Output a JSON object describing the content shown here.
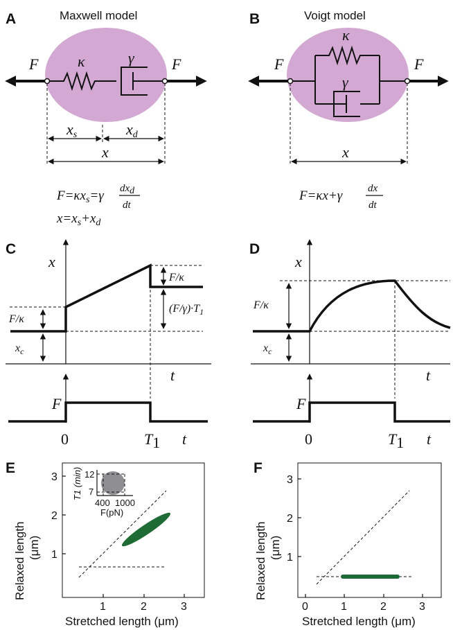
{
  "panels": {
    "A": {
      "letter": "A",
      "title": "Maxwell model",
      "force_left": "F",
      "force_right": "F",
      "spring_symbol": "κ",
      "dashpot_symbol": "γ",
      "dim_xs": "x",
      "dim_xs_sub": "s",
      "dim_xd": "x",
      "dim_xd_sub": "d",
      "dim_x": "x",
      "eq1_lhs": "F=κx",
      "eq1_lhs_sub": "s",
      "eq1_mid": "=γ",
      "eq1_num": "dx",
      "eq1_num_sub": "d",
      "eq1_den": "dt",
      "eq2_a": "x=x",
      "eq2_a_sub": "s",
      "eq2_b": "+x",
      "eq2_b_sub": "d"
    },
    "B": {
      "letter": "B",
      "title": "Voigt model",
      "force_left": "F",
      "force_right": "F",
      "spring_symbol": "κ",
      "dashpot_symbol": "γ",
      "dim_x": "x",
      "eq_lhs": "F=κx+γ",
      "eq_num": "dx",
      "eq_den": "dt"
    },
    "C": {
      "letter": "C",
      "y_symbol": "x",
      "t_symbol": "t",
      "t_symbol_lower": "t",
      "label_F_over_kappa_left": "F/κ",
      "label_F_over_kappa_right": "F/κ",
      "label_xc": "x",
      "label_xc_sub": "c",
      "label_creep": "(F/γ)·T",
      "label_creep_sub": "1",
      "force_symbol": "F",
      "tick_zero": "0",
      "tick_T": "T",
      "tick_T_sub": "1"
    },
    "D": {
      "letter": "D",
      "y_symbol": "x",
      "t_symbol": "t",
      "t_symbol_lower": "t",
      "label_F_over_kappa": "F/κ",
      "label_xc": "x",
      "label_xc_sub": "c",
      "force_symbol": "F",
      "tick_zero": "0",
      "tick_T": "T",
      "tick_T_sub": "1"
    },
    "E": {
      "letter": "E",
      "xlabel": "Stretched length (μm)",
      "ylabel_line1": "Relaxed length",
      "ylabel_line2": "(μm)",
      "x_ticks": [
        "1",
        "2",
        "3"
      ],
      "y_ticks": [
        "1",
        "2",
        "3"
      ],
      "inset": {
        "ylabel": "T1 (min)",
        "xlabel": "F(pN)",
        "y_ticks": [
          "12",
          "7"
        ],
        "x_ticks": [
          "400",
          "1000"
        ],
        "blob_color": "#8f8f93"
      },
      "ellipse_color": "#1f6b35"
    },
    "F": {
      "letter": "F",
      "xlabel": "Stretched length (μm)",
      "ylabel_line1": "Relaxed length",
      "ylabel_line2": "(μm)",
      "x_ticks": [
        "0",
        "1",
        "2",
        "3"
      ],
      "y_ticks": [
        "1",
        "2",
        "3"
      ],
      "bar_color": "#1f6b35"
    }
  },
  "colors": {
    "ellipse_fill": "#d3a8d3",
    "ink": "#111111"
  }
}
